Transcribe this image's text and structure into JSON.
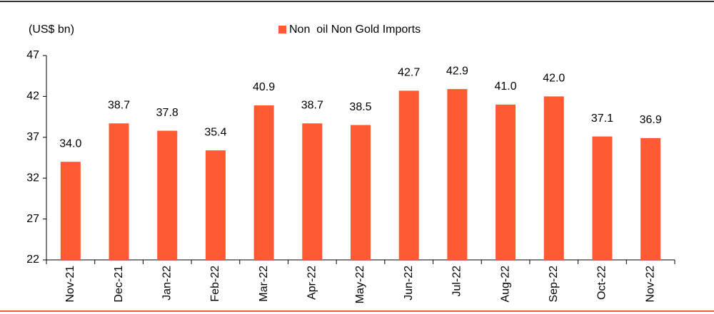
{
  "chart_data": {
    "type": "bar",
    "y_label": "(US$ bn)",
    "series": [
      {
        "name": "Non  oil Non Gold Imports",
        "color": "#ff5a33",
        "values": [
          34.0,
          38.7,
          37.8,
          35.4,
          40.9,
          38.7,
          38.5,
          42.7,
          42.9,
          41.0,
          42.0,
          37.1,
          36.9
        ],
        "value_labels": [
          "34.0",
          "38.7",
          "37.8",
          "35.4",
          "40.9",
          "38.7",
          "38.5",
          "42.7",
          "42.9",
          "41.0",
          "42.0",
          "37.1",
          "36.9"
        ]
      }
    ],
    "categories": [
      "Nov-21",
      "Dec-21",
      "Jan-22",
      "Feb-22",
      "Mar-22",
      "Apr-22",
      "May-22",
      "Jun-22",
      "Jul-22",
      "Aug-22",
      "Sep-22",
      "Oct-22",
      "Nov-22"
    ],
    "ylim": [
      22,
      47
    ],
    "yticks": [
      22,
      27,
      32,
      37,
      42,
      47
    ],
    "grid": false
  }
}
